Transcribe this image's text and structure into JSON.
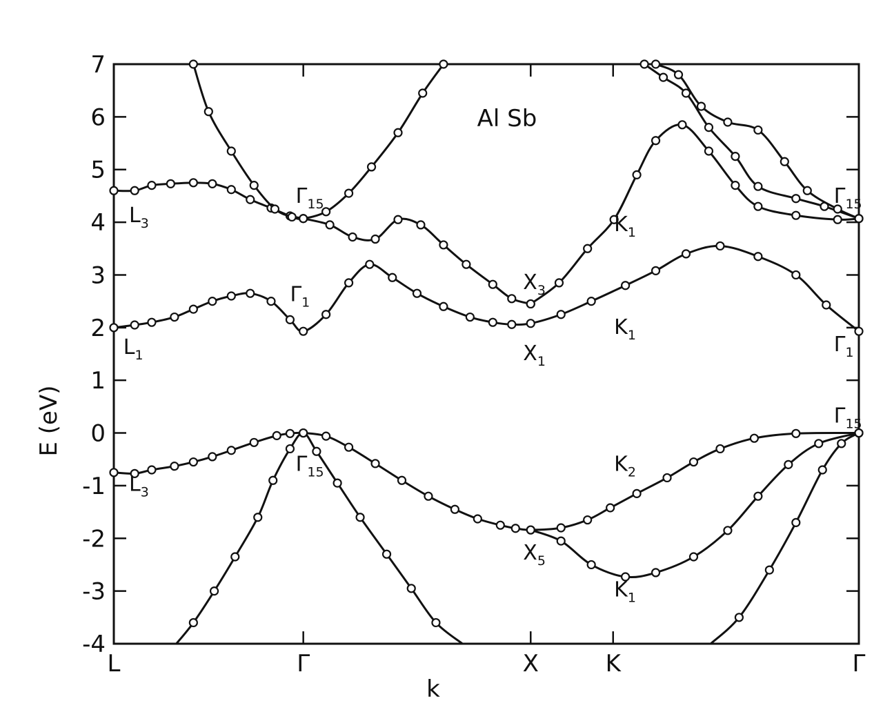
{
  "chart_data": {
    "type": "line",
    "title": "Al Sb",
    "xlabel": "k",
    "ylabel": "E (eV)",
    "ylim": [
      -4,
      7
    ],
    "xlim": [
      0,
      3.932
    ],
    "yticks": [
      {
        "value": -4,
        "label": "-4"
      },
      {
        "value": -3,
        "label": "-3"
      },
      {
        "value": -2,
        "label": "-2"
      },
      {
        "value": -1,
        "label": "-1"
      },
      {
        "value": 0,
        "label": "0"
      },
      {
        "value": 1,
        "label": "1"
      },
      {
        "value": 2,
        "label": "2"
      },
      {
        "value": 3,
        "label": "3"
      },
      {
        "value": 4,
        "label": "4"
      },
      {
        "value": 5,
        "label": "5"
      },
      {
        "value": 6,
        "label": "6"
      },
      {
        "value": 7,
        "label": "7"
      }
    ],
    "xticks": [
      {
        "value": 0,
        "label": "L"
      },
      {
        "value": 1.0,
        "label": "Γ"
      },
      {
        "value": 2.2,
        "label": "X"
      },
      {
        "value": 2.635,
        "label": "K"
      },
      {
        "value": 3.932,
        "label": "Γ"
      }
    ],
    "series": [
      {
        "values": [
          [
            0,
            -0.75
          ],
          [
            0.11,
            -0.77
          ],
          [
            0.2,
            -0.7
          ],
          [
            0.32,
            -0.63
          ],
          [
            0.42,
            -0.55
          ],
          [
            0.52,
            -0.45
          ],
          [
            0.62,
            -0.33
          ],
          [
            0.74,
            -0.18
          ],
          [
            0.86,
            -0.05
          ],
          [
            0.93,
            -0.01
          ],
          [
            1.0,
            0.0
          ],
          [
            1.12,
            -0.06
          ],
          [
            1.24,
            -0.27
          ],
          [
            1.38,
            -0.58
          ],
          [
            1.52,
            -0.9
          ],
          [
            1.66,
            -1.2
          ],
          [
            1.8,
            -1.45
          ],
          [
            1.92,
            -1.63
          ],
          [
            2.04,
            -1.75
          ],
          [
            2.12,
            -1.81
          ],
          [
            2.2,
            -1.84
          ],
          [
            2.36,
            -1.8
          ],
          [
            2.5,
            -1.65
          ],
          [
            2.62,
            -1.42
          ],
          [
            2.76,
            -1.15
          ],
          [
            2.92,
            -0.85
          ],
          [
            3.06,
            -0.55
          ],
          [
            3.2,
            -0.3
          ],
          [
            3.38,
            -0.1
          ],
          [
            3.6,
            -0.01
          ],
          [
            3.932,
            0.0
          ]
        ]
      },
      {
        "values": [
          [
            0.33,
            -4.0
          ],
          [
            0.42,
            -3.6
          ],
          [
            0.53,
            -3.0
          ],
          [
            0.64,
            -2.35
          ],
          [
            0.76,
            -1.6
          ],
          [
            0.84,
            -0.9
          ],
          [
            0.93,
            -0.3
          ],
          [
            1.0,
            0.0
          ],
          [
            1.07,
            -0.35
          ],
          [
            1.18,
            -0.95
          ],
          [
            1.3,
            -1.6
          ],
          [
            1.44,
            -2.3
          ],
          [
            1.57,
            -2.95
          ],
          [
            1.7,
            -3.6
          ],
          [
            1.84,
            -4.0
          ]
        ]
      },
      {
        "values": [
          [
            2.2,
            -1.84
          ],
          [
            2.36,
            -2.05
          ],
          [
            2.52,
            -2.5
          ],
          [
            2.7,
            -2.73
          ],
          [
            2.86,
            -2.65
          ],
          [
            3.06,
            -2.35
          ],
          [
            3.24,
            -1.85
          ],
          [
            3.4,
            -1.2
          ],
          [
            3.56,
            -0.6
          ],
          [
            3.72,
            -0.2
          ],
          [
            3.932,
            0.0
          ]
        ]
      },
      {
        "values": [
          [
            3.15,
            -4.0
          ],
          [
            3.3,
            -3.5
          ],
          [
            3.46,
            -2.6
          ],
          [
            3.6,
            -1.7
          ],
          [
            3.74,
            -0.7
          ],
          [
            3.84,
            -0.2
          ],
          [
            3.932,
            0.0
          ]
        ]
      },
      {
        "values": [
          [
            0,
            2.0
          ],
          [
            0.11,
            2.05
          ],
          [
            0.2,
            2.1
          ],
          [
            0.32,
            2.2
          ],
          [
            0.42,
            2.35
          ],
          [
            0.52,
            2.5
          ],
          [
            0.62,
            2.6
          ],
          [
            0.72,
            2.65
          ],
          [
            0.83,
            2.5
          ],
          [
            0.93,
            2.15
          ],
          [
            1.0,
            1.93
          ],
          [
            1.12,
            2.25
          ],
          [
            1.24,
            2.85
          ],
          [
            1.35,
            3.2
          ],
          [
            1.47,
            2.95
          ],
          [
            1.6,
            2.65
          ],
          [
            1.74,
            2.4
          ],
          [
            1.88,
            2.2
          ],
          [
            2.0,
            2.1
          ],
          [
            2.1,
            2.06
          ],
          [
            2.2,
            2.08
          ],
          [
            2.36,
            2.25
          ],
          [
            2.52,
            2.5
          ],
          [
            2.7,
            2.8
          ],
          [
            2.86,
            3.08
          ],
          [
            3.02,
            3.4
          ],
          [
            3.2,
            3.55
          ],
          [
            3.4,
            3.35
          ],
          [
            3.6,
            3.0
          ],
          [
            3.76,
            2.43
          ],
          [
            3.932,
            1.93
          ]
        ]
      },
      {
        "values": [
          [
            0,
            4.6
          ],
          [
            0.11,
            4.6
          ],
          [
            0.2,
            4.7
          ],
          [
            0.3,
            4.73
          ],
          [
            0.42,
            4.75
          ],
          [
            0.52,
            4.73
          ],
          [
            0.62,
            4.62
          ],
          [
            0.72,
            4.43
          ],
          [
            0.83,
            4.27
          ],
          [
            0.93,
            4.12
          ],
          [
            1.0,
            4.07
          ],
          [
            1.14,
            3.95
          ],
          [
            1.26,
            3.72
          ],
          [
            1.38,
            3.68
          ],
          [
            1.5,
            4.05
          ],
          [
            1.62,
            3.95
          ],
          [
            1.74,
            3.57
          ],
          [
            1.86,
            3.2
          ],
          [
            2.0,
            2.82
          ],
          [
            2.1,
            2.55
          ],
          [
            2.2,
            2.45
          ]
        ]
      },
      {
        "values": [
          [
            0.42,
            7.0
          ],
          [
            0.5,
            6.1
          ],
          [
            0.62,
            5.35
          ],
          [
            0.74,
            4.7
          ],
          [
            0.85,
            4.25
          ],
          [
            0.94,
            4.1
          ],
          [
            1.0,
            4.07
          ],
          [
            1.12,
            4.2
          ],
          [
            1.24,
            4.55
          ],
          [
            1.36,
            5.05
          ],
          [
            1.5,
            5.7
          ],
          [
            1.63,
            6.45
          ],
          [
            1.74,
            7.0
          ]
        ]
      },
      {
        "values": [
          [
            2.2,
            2.45
          ],
          [
            2.35,
            2.85
          ],
          [
            2.5,
            3.5
          ],
          [
            2.64,
            4.05
          ],
          [
            2.76,
            4.9
          ],
          [
            2.86,
            5.55
          ],
          [
            3.0,
            5.85
          ],
          [
            3.14,
            5.35
          ],
          [
            3.28,
            4.7
          ],
          [
            3.4,
            4.3
          ],
          [
            3.6,
            4.13
          ],
          [
            3.82,
            4.05
          ],
          [
            3.932,
            4.07
          ]
        ]
      },
      {
        "values": [
          [
            2.8,
            7.0
          ],
          [
            2.9,
            6.75
          ],
          [
            3.02,
            6.45
          ],
          [
            3.14,
            5.8
          ],
          [
            3.28,
            5.25
          ],
          [
            3.4,
            4.68
          ],
          [
            3.6,
            4.45
          ],
          [
            3.75,
            4.3
          ],
          [
            3.932,
            4.07
          ]
        ]
      },
      {
        "values": [
          [
            2.86,
            7.0
          ],
          [
            2.98,
            6.8
          ],
          [
            3.1,
            6.2
          ],
          [
            3.24,
            5.9
          ],
          [
            3.4,
            5.75
          ],
          [
            3.54,
            5.15
          ],
          [
            3.66,
            4.6
          ],
          [
            3.82,
            4.25
          ],
          [
            3.932,
            4.07
          ]
        ]
      }
    ],
    "annotations": [
      {
        "text": "Γ",
        "sub": "15",
        "x": 0.96,
        "y": 4.37
      },
      {
        "text": "L",
        "sub": "3",
        "x": 0.08,
        "y": 4.0
      },
      {
        "text": "K",
        "sub": "1",
        "x": 2.64,
        "y": 3.83
      },
      {
        "text": "X",
        "sub": "3",
        "x": 2.16,
        "y": 2.73
      },
      {
        "text": "Γ",
        "sub": "1",
        "x": 0.93,
        "y": 2.5
      },
      {
        "text": "L",
        "sub": "1",
        "x": 0.05,
        "y": 1.5
      },
      {
        "text": "K",
        "sub": "1",
        "x": 2.64,
        "y": 1.88
      },
      {
        "text": "X",
        "sub": "1",
        "x": 2.16,
        "y": 1.38
      },
      {
        "text": "Γ",
        "sub": "1",
        "x": 3.8,
        "y": 1.55
      },
      {
        "text": "Γ",
        "sub": "15",
        "x": 3.8,
        "y": 4.37
      },
      {
        "text": "Γ",
        "sub": "15",
        "x": 3.8,
        "y": 0.2
      },
      {
        "text": "Γ",
        "sub": "15",
        "x": 0.96,
        "y": -0.72
      },
      {
        "text": "L",
        "sub": "3",
        "x": 0.08,
        "y": -1.1
      },
      {
        "text": "K",
        "sub": "2",
        "x": 2.64,
        "y": -0.72
      },
      {
        "text": "X",
        "sub": "5",
        "x": 2.16,
        "y": -2.4
      },
      {
        "text": "K",
        "sub": "1",
        "x": 2.64,
        "y": -3.1
      }
    ],
    "grid": false,
    "colors": {
      "line": "#111111",
      "marker_fill": "#ffffff",
      "background": "#ffffff"
    }
  }
}
